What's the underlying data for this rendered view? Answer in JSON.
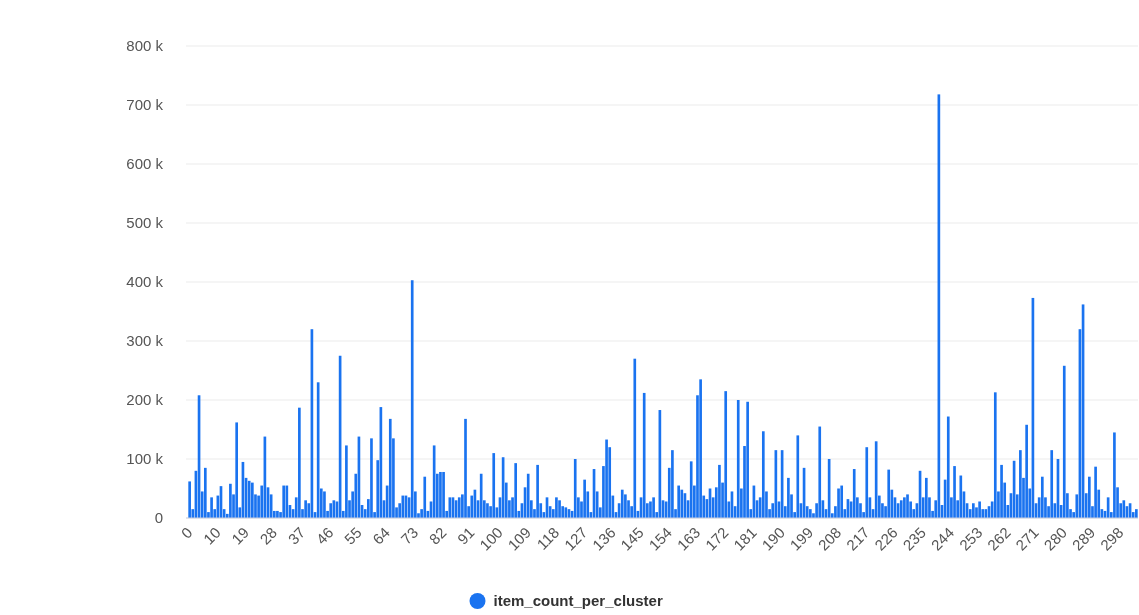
{
  "chart_data": {
    "type": "bar",
    "categories": [
      "0",
      null,
      null,
      null,
      null,
      null,
      null,
      null,
      null,
      "10",
      null,
      null,
      null,
      null,
      null,
      null,
      null,
      null,
      "19",
      null,
      null,
      null,
      null,
      null,
      null,
      null,
      null,
      "28",
      null,
      null,
      null,
      null,
      null,
      null,
      null,
      null,
      "37",
      null,
      null,
      null,
      null,
      null,
      null,
      null,
      null,
      "46",
      null,
      null,
      null,
      null,
      null,
      null,
      null,
      null,
      "55",
      null,
      null,
      null,
      null,
      null,
      null,
      null,
      null,
      "64",
      null,
      null,
      null,
      null,
      null,
      null,
      null,
      null,
      "73",
      null,
      null,
      null,
      null,
      null,
      null,
      null,
      null,
      "82",
      null,
      null,
      null,
      null,
      null,
      null,
      null,
      null,
      "91",
      null,
      null,
      null,
      null,
      null,
      null,
      null,
      null,
      "100",
      null,
      null,
      null,
      null,
      null,
      null,
      null,
      null,
      "109",
      null,
      null,
      null,
      null,
      null,
      null,
      null,
      null,
      "118",
      null,
      null,
      null,
      null,
      null,
      null,
      null,
      null,
      "127",
      null,
      null,
      null,
      null,
      null,
      null,
      null,
      null,
      "136",
      null,
      null,
      null,
      null,
      null,
      null,
      null,
      null,
      "145",
      null,
      null,
      null,
      null,
      null,
      null,
      null,
      null,
      "154",
      null,
      null,
      null,
      null,
      null,
      null,
      null,
      null,
      "163",
      null,
      null,
      null,
      null,
      null,
      null,
      null,
      null,
      "172",
      null,
      null,
      null,
      null,
      null,
      null,
      null,
      null,
      "181",
      null,
      null,
      null,
      null,
      null,
      null,
      null,
      null,
      "190",
      null,
      null,
      null,
      null,
      null,
      null,
      null,
      null,
      "199",
      null,
      null,
      null,
      null,
      null,
      null,
      null,
      null,
      "208",
      null,
      null,
      null,
      null,
      null,
      null,
      null,
      null,
      "217",
      null,
      null,
      null,
      null,
      null,
      null,
      null,
      null,
      "226",
      null,
      null,
      null,
      null,
      null,
      null,
      null,
      null,
      "235",
      null,
      null,
      null,
      null,
      null,
      null,
      null,
      null,
      "244",
      null,
      null,
      null,
      null,
      null,
      null,
      null,
      null,
      "253",
      null,
      null,
      null,
      null,
      null,
      null,
      null,
      null,
      "262",
      null,
      null,
      null,
      null,
      null,
      null,
      null,
      null,
      "271",
      null,
      null,
      null,
      null,
      null,
      null,
      null,
      null,
      "280",
      null,
      null,
      null,
      null,
      null,
      null,
      null,
      null,
      "289",
      null,
      null,
      null,
      null,
      null,
      null,
      null,
      null,
      "298",
      null,
      null,
      null,
      null,
      null
    ],
    "series": [
      {
        "name": "item_count_per_cluster",
        "color": "#1a73f0",
        "values": [
          62000,
          15000,
          80000,
          208000,
          45000,
          85000,
          10000,
          35000,
          15000,
          38000,
          54000,
          15000,
          7000,
          58000,
          40000,
          162000,
          18000,
          95000,
          68000,
          63000,
          60000,
          40000,
          38000,
          55000,
          138000,
          52000,
          40000,
          12000,
          12000,
          10000,
          55000,
          55000,
          22000,
          15000,
          35000,
          187000,
          15000,
          30000,
          25000,
          320000,
          10000,
          230000,
          50000,
          45000,
          12000,
          25000,
          30000,
          28000,
          275000,
          12000,
          123000,
          30000,
          45000,
          75000,
          138000,
          22000,
          15000,
          32000,
          135000,
          10000,
          98000,
          188000,
          30000,
          55000,
          168000,
          135000,
          18000,
          25000,
          38000,
          38000,
          35000,
          403000,
          45000,
          8000,
          15000,
          70000,
          12000,
          28000,
          123000,
          75000,
          78000,
          78000,
          12000,
          35000,
          35000,
          30000,
          35000,
          40000,
          168000,
          20000,
          38000,
          48000,
          30000,
          75000,
          30000,
          25000,
          20000,
          110000,
          18000,
          35000,
          103000,
          60000,
          30000,
          35000,
          93000,
          12000,
          25000,
          52000,
          75000,
          30000,
          15000,
          90000,
          25000,
          10000,
          35000,
          20000,
          15000,
          35000,
          30000,
          20000,
          18000,
          15000,
          12000,
          100000,
          35000,
          28000,
          65000,
          45000,
          10000,
          83000,
          45000,
          18000,
          88000,
          133000,
          120000,
          38000,
          10000,
          25000,
          48000,
          40000,
          30000,
          20000,
          270000,
          12000,
          35000,
          212000,
          25000,
          28000,
          35000,
          10000,
          183000,
          30000,
          28000,
          85000,
          115000,
          15000,
          55000,
          48000,
          42000,
          30000,
          96000,
          55000,
          208000,
          235000,
          38000,
          32000,
          50000,
          35000,
          52000,
          90000,
          60000,
          215000,
          28000,
          45000,
          20000,
          200000,
          50000,
          122000,
          197000,
          15000,
          55000,
          30000,
          35000,
          147000,
          45000,
          15000,
          25000,
          115000,
          28000,
          115000,
          20000,
          68000,
          40000,
          10000,
          140000,
          25000,
          85000,
          20000,
          15000,
          8000,
          25000,
          155000,
          30000,
          15000,
          100000,
          8000,
          20000,
          50000,
          55000,
          15000,
          32000,
          28000,
          83000,
          35000,
          25000,
          10000,
          120000,
          35000,
          15000,
          130000,
          38000,
          25000,
          20000,
          82000,
          48000,
          35000,
          25000,
          30000,
          35000,
          40000,
          28000,
          15000,
          25000,
          80000,
          35000,
          68000,
          35000,
          12000,
          30000,
          718000,
          22000,
          65000,
          172000,
          35000,
          88000,
          30000,
          72000,
          45000,
          25000,
          15000,
          25000,
          18000,
          28000,
          15000,
          15000,
          20000,
          28000,
          213000,
          45000,
          90000,
          60000,
          22000,
          42000,
          97000,
          40000,
          115000,
          68000,
          158000,
          50000,
          373000,
          25000,
          35000,
          70000,
          35000,
          20000,
          115000,
          25000,
          100000,
          22000,
          258000,
          42000,
          15000,
          10000,
          40000,
          320000,
          362000,
          42000,
          70000,
          20000,
          87000,
          48000,
          15000,
          12000,
          35000,
          10000,
          145000,
          52000,
          25000,
          30000,
          20000,
          25000,
          10000,
          15000
        ]
      }
    ],
    "ylim": [
      0,
      800000
    ],
    "yticks": [
      {
        "value": 0,
        "label": "0"
      },
      {
        "value": 100000,
        "label": "100 k"
      },
      {
        "value": 200000,
        "label": "200 k"
      },
      {
        "value": 300000,
        "label": "300 k"
      },
      {
        "value": 400000,
        "label": "400 k"
      },
      {
        "value": 500000,
        "label": "500 k"
      },
      {
        "value": 600000,
        "label": "600 k"
      },
      {
        "value": 700000,
        "label": "700 k"
      },
      {
        "value": 800000,
        "label": "800 k"
      }
    ],
    "grid": "y",
    "legend": "bottom"
  }
}
